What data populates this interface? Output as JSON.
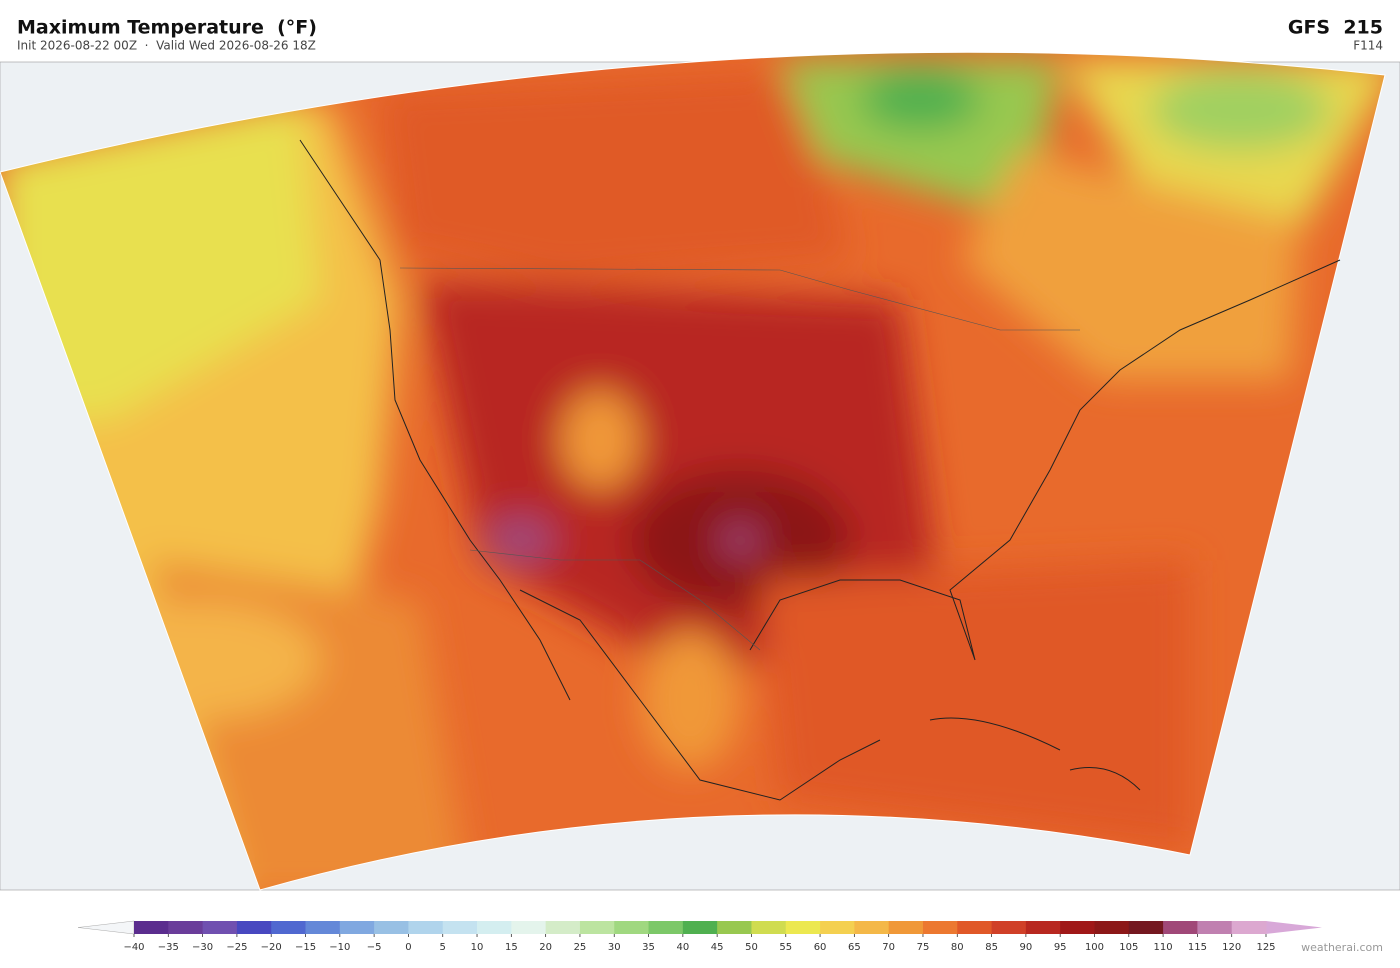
{
  "header": {
    "title": "Maximum Temperature  (°F)",
    "subtitle": "Init 2026-08-22 00Z  ·  Valid Wed 2026-08-26 18Z",
    "model": "GFS  215",
    "forecast_hour": "F114"
  },
  "colorbar": {
    "ticks": [
      {
        "value": -40,
        "label": "−40"
      },
      {
        "value": -35,
        "label": "−35"
      },
      {
        "value": -30,
        "label": "−30"
      },
      {
        "value": -25,
        "label": "−25"
      },
      {
        "value": -20,
        "label": "−20"
      },
      {
        "value": -15,
        "label": "−15"
      },
      {
        "value": -10,
        "label": "−10"
      },
      {
        "value": -5,
        "label": "−5"
      },
      0,
      5,
      10,
      15,
      20,
      25,
      30,
      35,
      40,
      45,
      50,
      55,
      60,
      65,
      70,
      75,
      80,
      85,
      90,
      95,
      100,
      105,
      110,
      115,
      120,
      125
    ],
    "colors": [
      "#5b2d8e",
      "#6a3d9a",
      "#7050b0",
      "#4848c0",
      "#5068d0",
      "#6488d8",
      "#80a8e0",
      "#98c0e4",
      "#b0d4ec",
      "#c4e2f0",
      "#d4eef0",
      "#e4f4ec",
      "#d4ecc8",
      "#bce4a0",
      "#a0d880",
      "#7cc868",
      "#50b050",
      "#98c850",
      "#d0dc50",
      "#ece850",
      "#f4d050",
      "#f4b848",
      "#f09838",
      "#ec7830",
      "#e05828",
      "#d04028",
      "#b82820",
      "#a01818",
      "#8c1818",
      "#741820",
      "#a04878",
      "#c080b0",
      "#dca8d0"
    ],
    "under_color": "#f4f6f8",
    "over_color": "#d8a8d8"
  },
  "footer": {
    "credit": "weatherai.com"
  }
}
